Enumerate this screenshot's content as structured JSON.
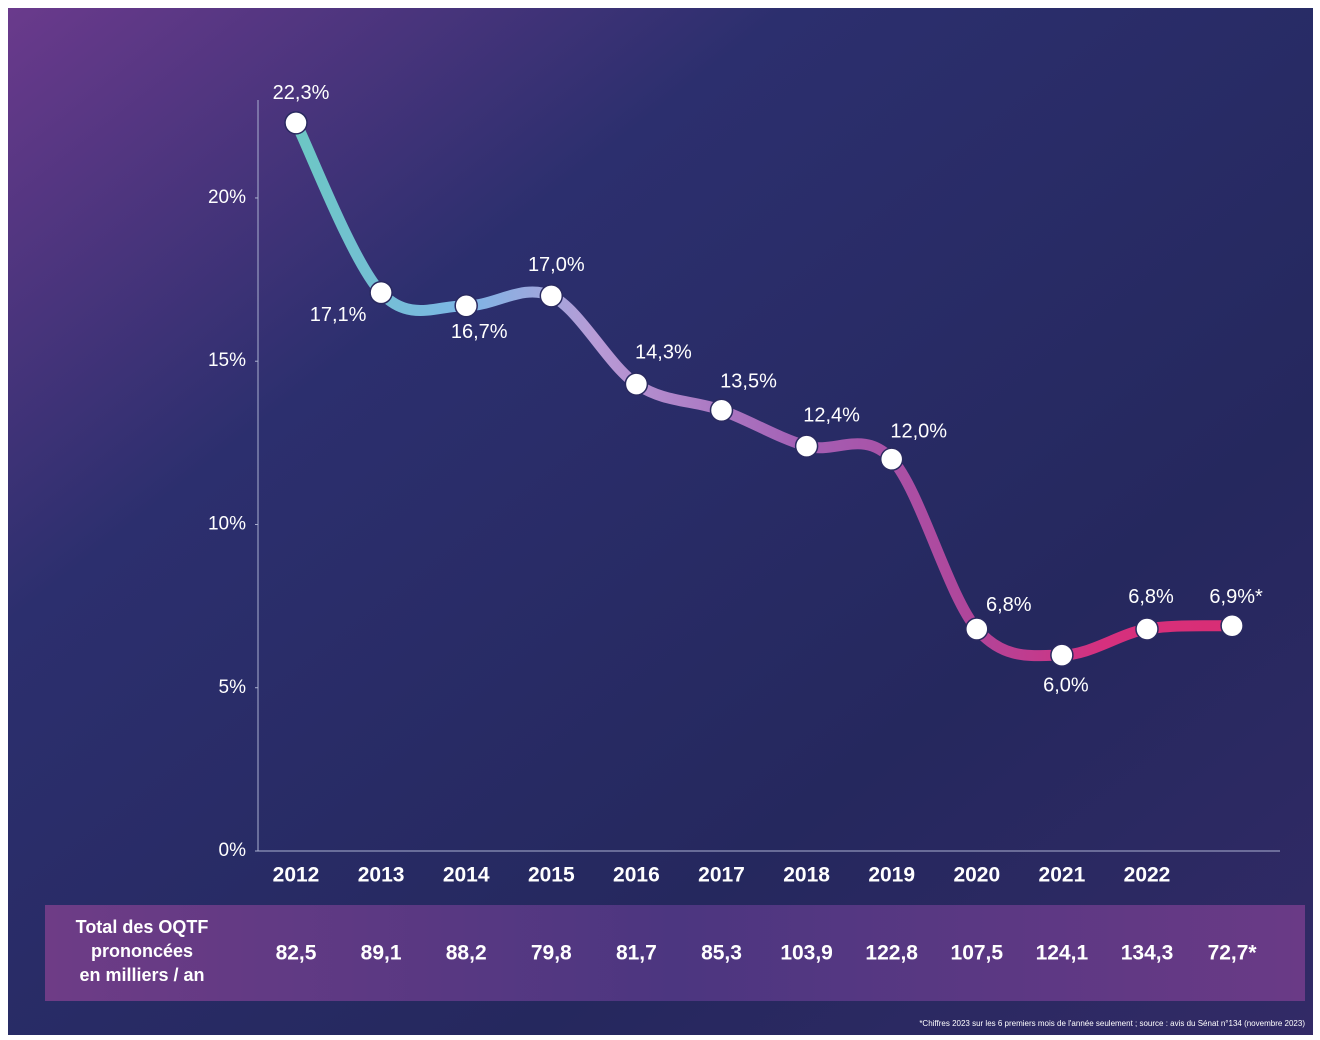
{
  "chart_data": {
    "type": "line",
    "categories": [
      "2012",
      "2013",
      "2014",
      "2015",
      "2016",
      "2017",
      "2018",
      "2019",
      "2020",
      "2021",
      "2022",
      null
    ],
    "values": [
      22.3,
      17.1,
      16.7,
      17.0,
      14.3,
      13.5,
      12.4,
      12.0,
      6.8,
      6.0,
      6.8,
      6.9
    ],
    "value_labels": [
      "22,3%",
      "17,1%",
      "16,7%",
      "17,0%",
      "14,3%",
      "13,5%",
      "12,4%",
      "12,0%",
      "6,8%",
      "6,0%",
      "6,8%",
      "6,9%*"
    ],
    "ylim": [
      0,
      23
    ],
    "yticks": [
      {
        "value": 0,
        "label": "0%"
      },
      {
        "value": 5,
        "label": "5%"
      },
      {
        "value": 10,
        "label": "10%"
      },
      {
        "value": 15,
        "label": "15%"
      },
      {
        "value": 20,
        "label": "20%"
      }
    ],
    "table_row": {
      "label": [
        "Total des OQTF",
        "prononcées",
        "en milliers / an"
      ],
      "cells": [
        "82,5",
        "89,1",
        "88,2",
        "79,8",
        "81,7",
        "85,3",
        "103,9",
        "122,8",
        "107,5",
        "124,1",
        "134,3",
        "72,7*"
      ]
    },
    "footnote": "*Chiffres 2023 sur les 6 premiers mois de l'année seulement ; source : avis du Sénat n°134 (novembre 2023)"
  }
}
